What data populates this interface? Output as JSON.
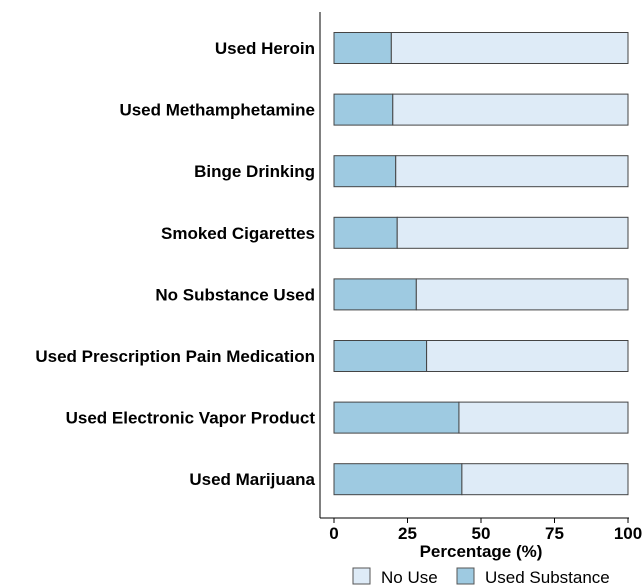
{
  "chart_data": {
    "type": "bar",
    "orientation": "horizontal",
    "stacked": true,
    "categories": [
      "Used Heroin",
      "Used Methamphetamine",
      "Binge Drinking",
      "Smoked Cigarettes",
      "No Substance Used",
      "Used Prescription Pain Medication",
      "Used Electronic Vapor Product",
      "Used Marijuana"
    ],
    "series": [
      {
        "name": "Used Substance",
        "color": "#9ecae1",
        "values": [
          19.5,
          20.0,
          21.0,
          21.5,
          28.0,
          31.5,
          42.5,
          43.5
        ]
      },
      {
        "name": "No Use",
        "color": "#deebf7",
        "values": [
          80.5,
          80.0,
          79.0,
          78.5,
          72.0,
          68.5,
          57.5,
          56.5
        ]
      }
    ],
    "xlabel": "Percentage (%)",
    "ylabel": "",
    "xlim": [
      0,
      100
    ],
    "xticks": [
      0,
      25,
      50,
      75,
      100
    ],
    "legend": {
      "placement": "bottom",
      "entries": [
        "No Use",
        "Used Substance"
      ]
    },
    "grid": false
  }
}
